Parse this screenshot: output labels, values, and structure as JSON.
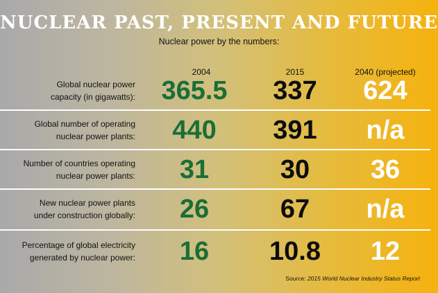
{
  "title": "NUCLEAR PAST, PRESENT AND FUTURE",
  "subtitle": "Nuclear power by the numbers:",
  "columns": [
    "2004",
    "2015",
    "2040 (projected)"
  ],
  "rows": [
    {
      "label_line1": "Global nuclear power",
      "label_line2": "capacity (in gigawatts):",
      "v2004": "365.5",
      "v2015": "337",
      "v2040": "624"
    },
    {
      "label_line1": "Global number of operating",
      "label_line2": "nuclear power plants:",
      "v2004": "440",
      "v2015": "391",
      "v2040": "n/a"
    },
    {
      "label_line1": "Number of countries operating",
      "label_line2": "nuclear power plants:",
      "v2004": "31",
      "v2015": "30",
      "v2040": "36"
    },
    {
      "label_line1": "New nuclear power plants",
      "label_line2": "under construction globally:",
      "v2004": "26",
      "v2015": "67",
      "v2040": "n/a"
    },
    {
      "label_line1": "Percentage of global electricity",
      "label_line2": "generated by nuclear power:",
      "v2004": "16",
      "v2015": "10.8",
      "v2040": "12"
    }
  ],
  "source": {
    "prefix": "Source: ",
    "text": "2015 World Nuclear Industry Status Report"
  },
  "colors": {
    "value_2004": "#1b6e36",
    "value_2015": "#0d0d0d",
    "value_2040": "#ffffff",
    "divider": "#ffffff"
  }
}
